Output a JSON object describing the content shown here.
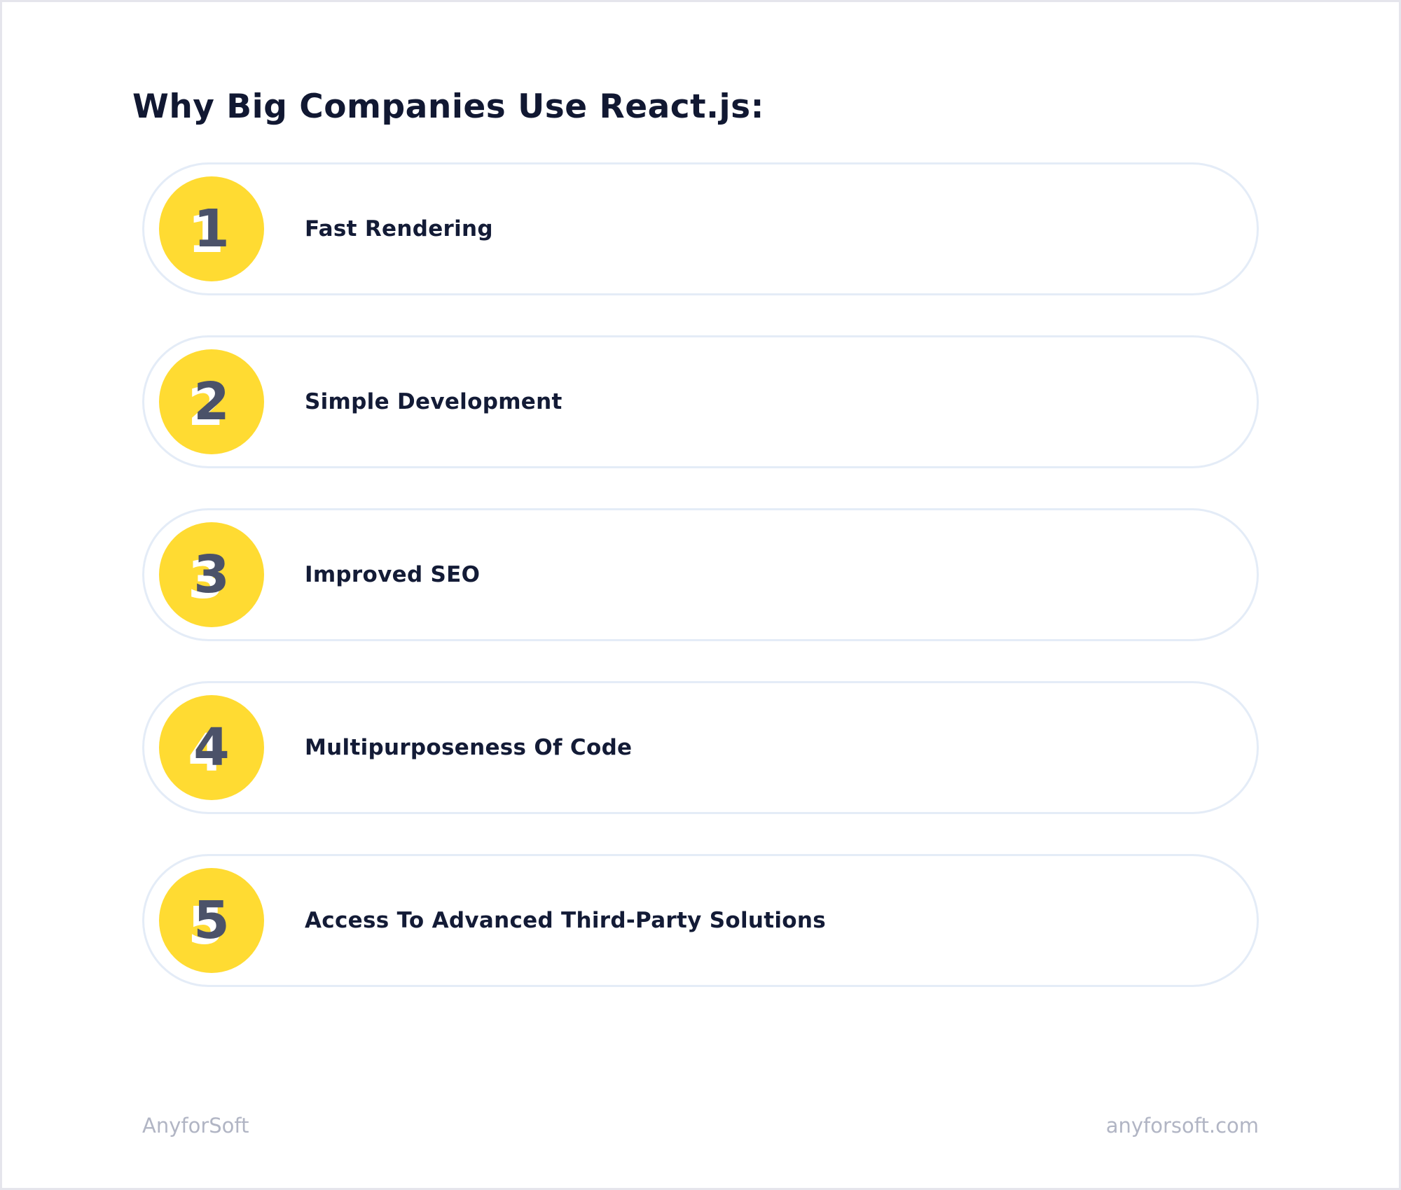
{
  "title": "Why Big Companies Use React.js:",
  "items": [
    {
      "number": "1",
      "label": "Fast Rendering"
    },
    {
      "number": "2",
      "label": "Simple Development"
    },
    {
      "number": "3",
      "label": "Improved SEO"
    },
    {
      "number": "4",
      "label": "Multipurposeness Of Code"
    },
    {
      "number": "5",
      "label": "Access To Advanced Third-Party Solutions"
    }
  ],
  "footer": {
    "brand": "AnyforSoft",
    "website": "anyforsoft.com"
  },
  "colors": {
    "accent_yellow": "#ffdb32",
    "title_navy": "#111832",
    "number_slate": "#4b5269",
    "pill_border": "#e4ecf7",
    "footer_gray": "#b1b5c4",
    "frame_gray": "#e5e5ec"
  }
}
